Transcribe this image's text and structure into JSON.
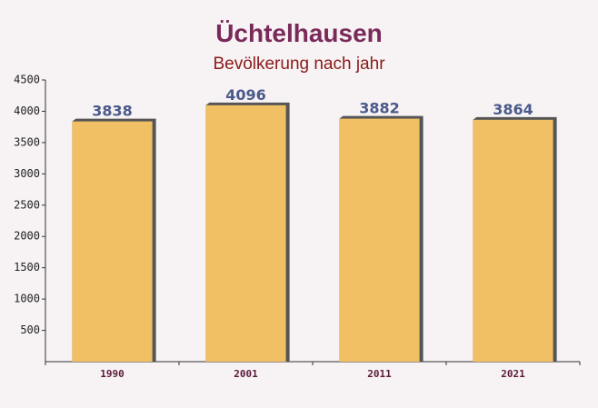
{
  "chart_data": {
    "type": "bar",
    "title": "Üchtelhausen",
    "subtitle": "Bevölkerung nach jahr",
    "categories": [
      "1990",
      "2001",
      "2011",
      "2021"
    ],
    "values": [
      3838,
      4096,
      3882,
      3864
    ],
    "color": "#ffc966",
    "ylim": [
      0,
      4500
    ],
    "yticks": [
      500,
      1000,
      1500,
      2000,
      2500,
      3000,
      3500,
      4000,
      4500
    ],
    "grid": false
  }
}
